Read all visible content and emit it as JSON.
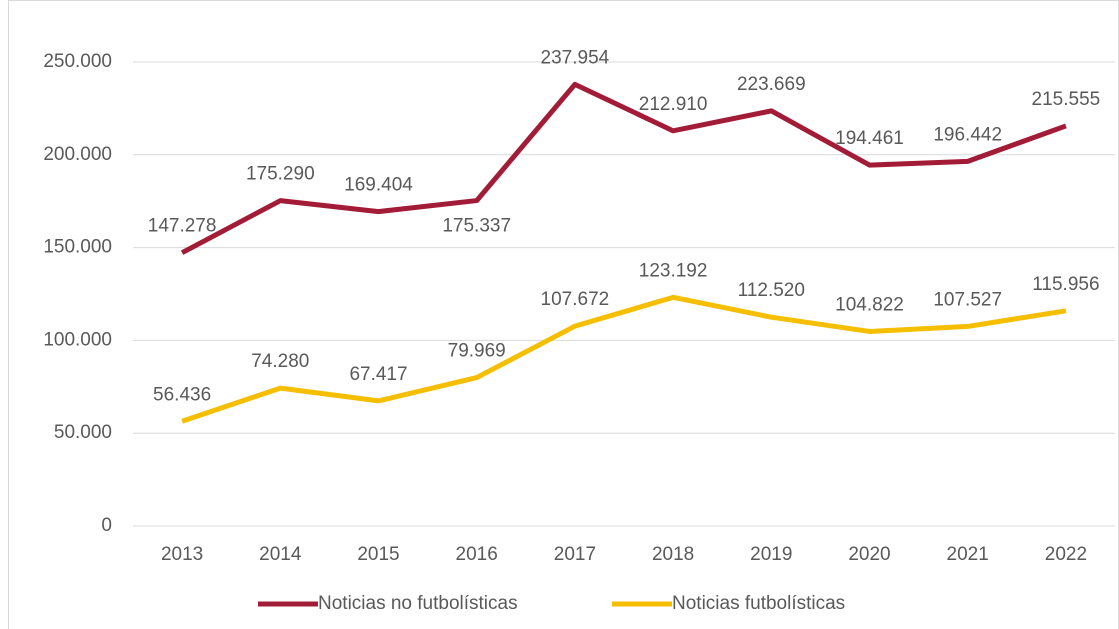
{
  "chart_data": {
    "type": "line",
    "categories": [
      "2013",
      "2014",
      "2015",
      "2016",
      "2017",
      "2018",
      "2019",
      "2020",
      "2021",
      "2022"
    ],
    "series": [
      {
        "name": "Noticias no futbolísticas",
        "color": "#a31c37",
        "values": [
          147278,
          175290,
          169404,
          175337,
          237954,
          212910,
          223669,
          194461,
          196442,
          215555
        ],
        "value_labels": [
          "147.278",
          "175.290",
          "169.404",
          "175.337",
          "237.954",
          "212.910",
          "223.669",
          "194.461",
          "196.442",
          "215.555"
        ]
      },
      {
        "name": "Noticias futbolísticas",
        "color": "#f5bf00",
        "values": [
          56436,
          74280,
          67417,
          79969,
          107672,
          123192,
          112520,
          104822,
          107527,
          115956
        ],
        "value_labels": [
          "56.436",
          "74.280",
          "67.417",
          "79.969",
          "107.672",
          "123.192",
          "112.520",
          "104.822",
          "107.527",
          "115.956"
        ]
      }
    ],
    "ylim": [
      0,
      250000
    ],
    "yticks": [
      0,
      {
        "value": 50000,
        "label": "50.000"
      },
      {
        "value": 100000,
        "label": "100.000"
      },
      {
        "value": 150000,
        "label": "150.000"
      },
      {
        "value": 200000,
        "label": "200.000"
      },
      {
        "value": 250000,
        "label": "250.000"
      }
    ],
    "grid": true,
    "legend": "bottom"
  }
}
